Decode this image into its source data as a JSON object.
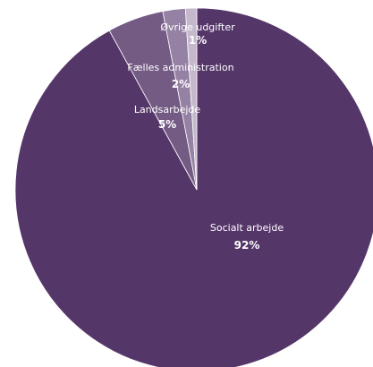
{
  "chart_data": {
    "type": "pie",
    "slices": [
      {
        "label": "Socialt arbejde",
        "value": 92,
        "display": "92%",
        "color": "#553669"
      },
      {
        "label": "Landsarbejde",
        "value": 5,
        "display": "5%",
        "color": "#745b84"
      },
      {
        "label": "Fælles administration",
        "value": 2,
        "display": "2%",
        "color": "#9581a3"
      },
      {
        "label": "Øvrige udgifter",
        "value": 1,
        "display": "1%",
        "color": "#c5b8cc"
      }
    ],
    "start_angle_deg": 0,
    "direction": "clockwise"
  }
}
